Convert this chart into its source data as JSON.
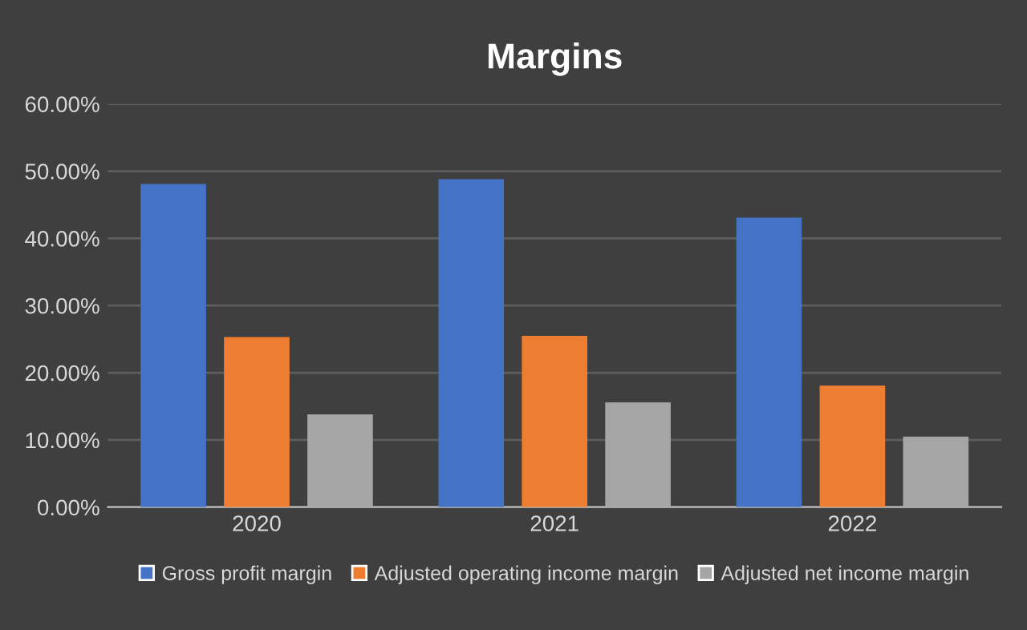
{
  "chart_data": {
    "type": "bar",
    "title": "Margins",
    "categories": [
      "2020",
      "2021",
      "2022"
    ],
    "series": [
      {
        "name": "Gross profit margin",
        "color": "#4472c4",
        "values": [
          48.1,
          48.8,
          43.1
        ]
      },
      {
        "name": "Adjusted operating income margin",
        "color": "#ed7d31",
        "values": [
          25.3,
          25.5,
          18.1
        ]
      },
      {
        "name": "Adjusted net income margin",
        "color": "#a5a5a5",
        "values": [
          13.8,
          15.6,
          10.5
        ]
      }
    ],
    "ylim": [
      0,
      60
    ],
    "yticks": [
      {
        "value": 0,
        "label": "0.00%"
      },
      {
        "value": 10,
        "label": "10.00%"
      },
      {
        "value": 20,
        "label": "20.00%"
      },
      {
        "value": 30,
        "label": "30.00%"
      },
      {
        "value": 40,
        "label": "40.00%"
      },
      {
        "value": 50,
        "label": "50.00%"
      },
      {
        "value": 60,
        "label": "60.00%"
      }
    ],
    "grid": "y",
    "legend": "bottom"
  }
}
